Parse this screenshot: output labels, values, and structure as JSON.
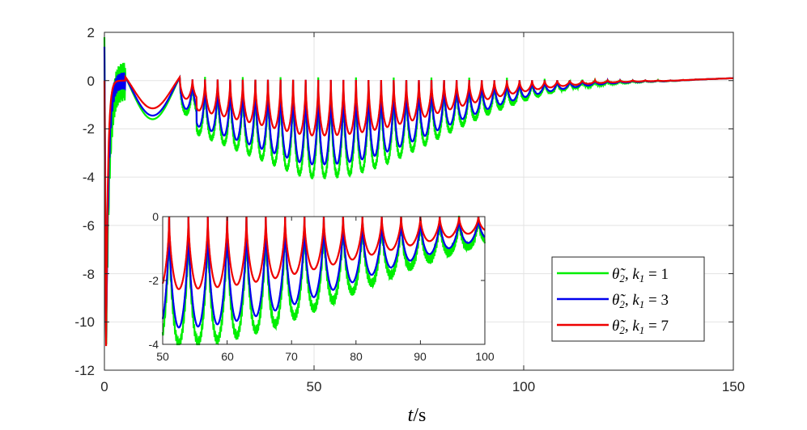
{
  "chart_data": [
    {
      "type": "line",
      "title": "",
      "xlabel": "t/s",
      "ylabel": "",
      "xlim": [
        0,
        150
      ],
      "ylim": [
        -12,
        2
      ],
      "xticks": [
        "0",
        "50",
        "100",
        "150"
      ],
      "yticks": [
        "2",
        "0",
        "-2",
        "-4",
        "-6",
        "-8",
        "-10",
        "-12"
      ],
      "grid": true,
      "legend_position": "lower-right",
      "series": [
        {
          "name": "θ̃2, k1 = 1",
          "color": "#00ee00",
          "k": 1,
          "start_value": 1.8,
          "min_value": -11.0,
          "oscillation_trough_min": -4.0
        },
        {
          "name": "θ̃2, k1 = 3",
          "color": "#0000ee",
          "k": 3,
          "start_value": 1.4,
          "min_value": -11.0,
          "oscillation_trough_min": -3.5
        },
        {
          "name": "θ̃2, k1 = 7",
          "color": "#ee0000",
          "k": 7,
          "start_value": 0.0,
          "min_value": -11.0,
          "oscillation_trough_min": -2.3
        }
      ],
      "oscillation_period": 3.0,
      "settling_time": 135
    },
    {
      "type": "line",
      "title": "inset",
      "xlabel": "",
      "ylabel": "",
      "xlim": [
        50,
        100
      ],
      "ylim": [
        -4,
        0
      ],
      "xticks": [
        "50",
        "60",
        "70",
        "80",
        "90",
        "100"
      ],
      "yticks": [
        "0",
        "-2",
        "-4"
      ],
      "grid": false,
      "series_ref": "same as main chart"
    }
  ],
  "legend": {
    "entries": [
      {
        "symbol": "θ̃",
        "sub": "2",
        "text": ", k",
        "ksub": "1",
        "eq": " = 1"
      },
      {
        "symbol": "θ̃",
        "sub": "2",
        "text": ", k",
        "ksub": "1",
        "eq": " = 3"
      },
      {
        "symbol": "θ̃",
        "sub": "2",
        "text": ", k",
        "ksub": "1",
        "eq": " = 7"
      }
    ]
  },
  "axis_title": {
    "t": "t",
    "unit": "/s"
  }
}
